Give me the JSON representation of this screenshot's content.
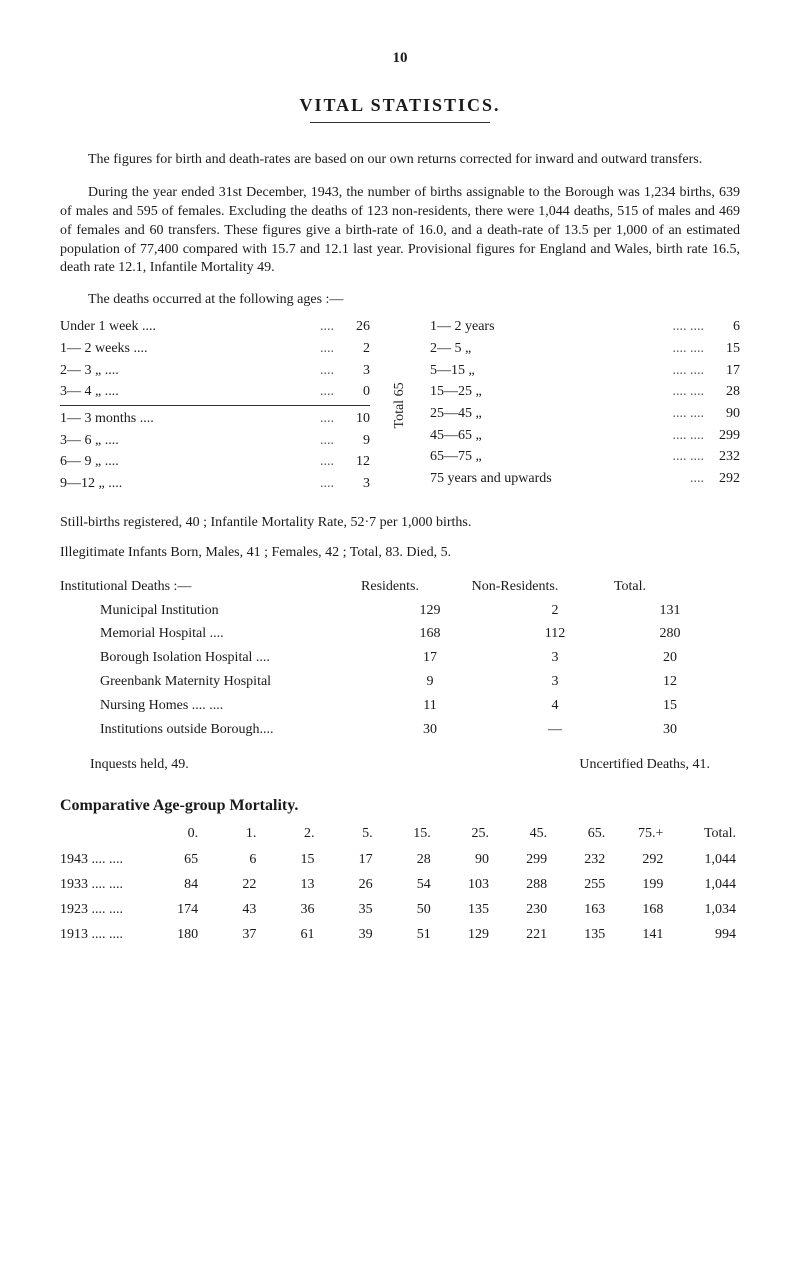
{
  "page_number": "10",
  "title": "VITAL STATISTICS.",
  "paragraphs": {
    "p1": "The figures for birth and death-rates are based on our own returns corrected for inward and outward transfers.",
    "p2": "During the year ended 31st December, 1943, the number of births assignable to the Borough was 1,234 births, 639 of males and 595 of females. Excluding the deaths of 123 non-residents, there were 1,044 deaths, 515 of males and 469 of females and 60 transfers. These figures give a birth-rate of 16.0, and a death-rate of 13.5 per 1,000 of an estimated population of 77,400 compared with 15.7 and 12.1 last year. Provisional figures for England and Wales, birth rate 16.5, death rate 12.1, Infantile Mortality 49.",
    "ages_intro": "The deaths occurred at the following ages :—"
  },
  "ages_left": [
    {
      "label": "Under 1 week  ....",
      "dots": "....",
      "val": "26"
    },
    {
      "label": "1— 2 weeks   ....",
      "dots": "....",
      "val": "2"
    },
    {
      "label": "2— 3   „       ....",
      "dots": "....",
      "val": "3"
    },
    {
      "label": "3— 4   „       ....",
      "dots": "....",
      "val": "0"
    },
    {
      "label": "1— 3 months ....",
      "dots": "....",
      "val": "10"
    },
    {
      "label": "3— 6   „       ....",
      "dots": "....",
      "val": "9"
    },
    {
      "label": "6— 9   „       ....",
      "dots": "....",
      "val": "12"
    },
    {
      "label": "9—12   „       ....",
      "dots": "....",
      "val": "3"
    }
  ],
  "brace_label": "Total 65",
  "ages_right": [
    {
      "label": "1— 2 years",
      "dots": "....        ....",
      "val": "6"
    },
    {
      "label": "2— 5   „",
      "dots": "....        ....",
      "val": "15"
    },
    {
      "label": "5—15   „",
      "dots": "....        ....",
      "val": "17"
    },
    {
      "label": "15—25   „",
      "dots": "....        ....",
      "val": "28"
    },
    {
      "label": "25—45   „",
      "dots": "....        ....",
      "val": "90"
    },
    {
      "label": "45—65   „",
      "dots": "....        ....",
      "val": "299"
    },
    {
      "label": "65—75   „",
      "dots": "....        ....",
      "val": "232"
    },
    {
      "label": "75 years and upwards",
      "dots": "....",
      "val": "292"
    }
  ],
  "stillbirths_line": "Still-births registered, 40 ; Infantile Mortality Rate, 52·7 per 1,000 births.",
  "illegit_line": "Illegitimate Infants Born, Males, 41 ; Females, 42 ; Total, 83. Died, 5.",
  "institutional": {
    "heading_label": "Institutional Deaths :—",
    "head_res": "Residents.",
    "head_non": "Non-Residents.",
    "head_tot": "Total.",
    "rows": [
      {
        "label": "Municipal Institution",
        "res": "129",
        "non": "2",
        "tot": "131"
      },
      {
        "label": "Memorial Hospital ....",
        "res": "168",
        "non": "112",
        "tot": "280"
      },
      {
        "label": "Borough Isolation Hospital ....",
        "res": "17",
        "non": "3",
        "tot": "20"
      },
      {
        "label": "Greenbank Maternity Hospital",
        "res": "9",
        "non": "3",
        "tot": "12"
      },
      {
        "label": "Nursing Homes    ....      ....",
        "res": "11",
        "non": "4",
        "tot": "15"
      },
      {
        "label": "Institutions outside Borough....",
        "res": "30",
        "non": "—",
        "tot": "30"
      }
    ]
  },
  "inquests_left": "Inquests held, 49.",
  "inquests_right": "Uncertified Deaths, 41.",
  "comparative": {
    "title": "Comparative Age-group Mortality.",
    "header": {
      "c0": "0.",
      "c1": "1.",
      "c2": "2.",
      "c5": "5.",
      "c15": "15.",
      "c25": "25.",
      "c45": "45.",
      "c65": "65.",
      "c75": "75.+",
      "ctotal": "Total."
    },
    "rows": [
      {
        "year": "1943  ....  ....",
        "v": [
          "65",
          "6",
          "15",
          "17",
          "28",
          "90",
          "299",
          "232",
          "292",
          "1,044"
        ]
      },
      {
        "year": "1933  ....  ....",
        "v": [
          "84",
          "22",
          "13",
          "26",
          "54",
          "103",
          "288",
          "255",
          "199",
          "1,044"
        ]
      },
      {
        "year": "1923  ....  ....",
        "v": [
          "174",
          "43",
          "36",
          "35",
          "50",
          "135",
          "230",
          "163",
          "168",
          "1,034"
        ]
      },
      {
        "year": "1913  ....  ....",
        "v": [
          "180",
          "37",
          "61",
          "39",
          "51",
          "129",
          "221",
          "135",
          "141",
          "994"
        ]
      }
    ]
  }
}
